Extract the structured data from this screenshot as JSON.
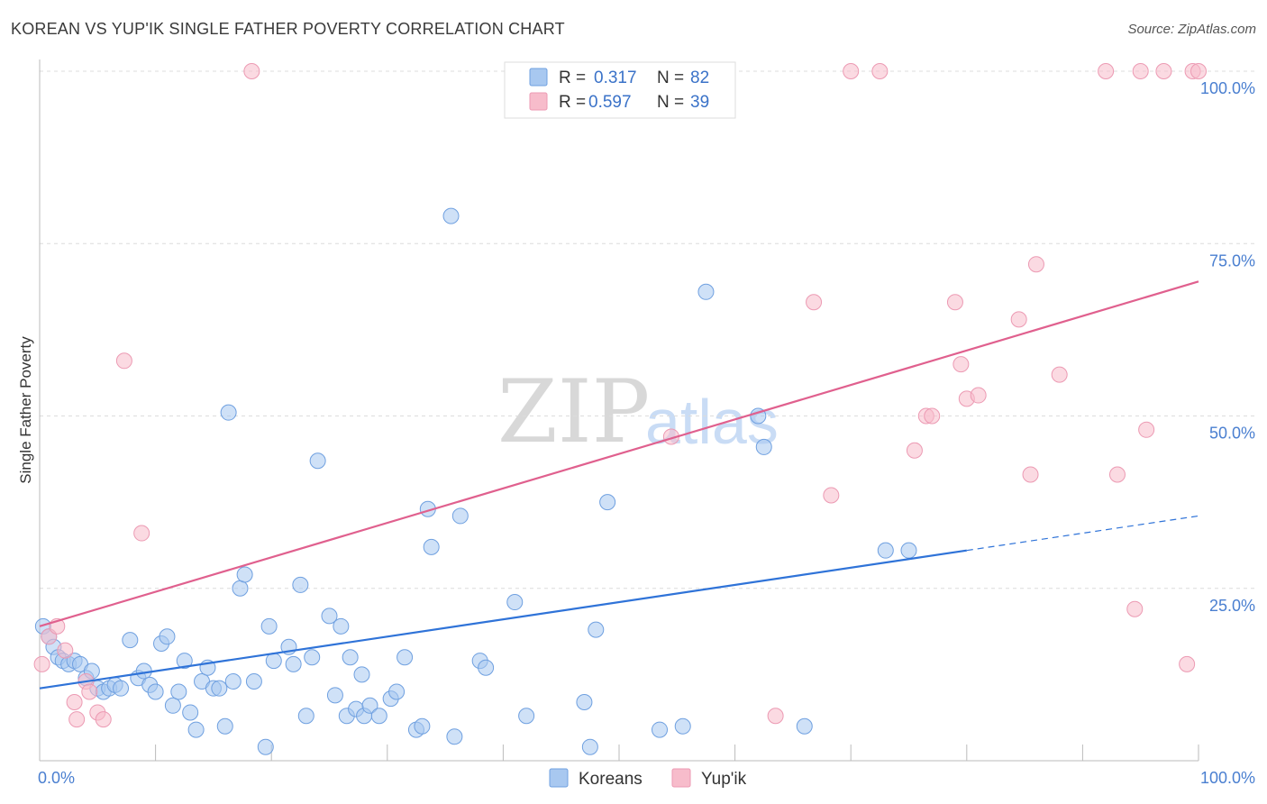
{
  "header": {
    "title": "KOREAN VS YUP'IK SINGLE FATHER POVERTY CORRELATION CHART",
    "source": "Source: ZipAtlas.com"
  },
  "watermark": {
    "zip": "ZIP",
    "atlas": "atlas"
  },
  "legend": {
    "r_label": "R =",
    "n_label": "N =",
    "rows": [
      {
        "r": "0.317",
        "n": "82",
        "color": "#a8c8f0"
      },
      {
        "r": "0.597",
        "n": "39",
        "color": "#f7bccb"
      }
    ]
  },
  "bottom_legend": {
    "items": [
      "Koreans",
      "Yup'ik"
    ]
  },
  "chart_data": {
    "type": "scatter",
    "title": "KOREAN VS YUP'IK SINGLE FATHER POVERTY CORRELATION CHART",
    "xlabel": "",
    "ylabel": "Single Father Poverty",
    "xlim": [
      0,
      100
    ],
    "ylim": [
      0,
      100
    ],
    "x_tick_labels": [
      "0.0%",
      "100.0%"
    ],
    "y_tick_labels": [
      "25.0%",
      "50.0%",
      "75.0%",
      "100.0%"
    ],
    "y_ticks": [
      25,
      50,
      75,
      100
    ],
    "grid": true,
    "legend_placement": "top-center",
    "series": [
      {
        "name": "Koreans",
        "color": "#6fa0e0",
        "fill": "#a8c8f0",
        "points": [
          [
            0.3,
            19.5
          ],
          [
            0.8,
            18
          ],
          [
            1.2,
            16.5
          ],
          [
            1.6,
            15
          ],
          [
            2.0,
            14.5
          ],
          [
            2.5,
            14
          ],
          [
            3.0,
            14.5
          ],
          [
            3.5,
            14
          ],
          [
            4.0,
            12
          ],
          [
            4.5,
            13
          ],
          [
            5.0,
            10.5
          ],
          [
            5.5,
            10
          ],
          [
            6.0,
            10.5
          ],
          [
            6.5,
            11
          ],
          [
            7.0,
            10.5
          ],
          [
            7.8,
            17.5
          ],
          [
            8.5,
            12
          ],
          [
            9.0,
            13
          ],
          [
            9.5,
            11
          ],
          [
            10.0,
            10
          ],
          [
            10.5,
            17
          ],
          [
            11.0,
            18
          ],
          [
            11.5,
            8
          ],
          [
            12.0,
            10
          ],
          [
            12.5,
            14.5
          ],
          [
            13.0,
            7
          ],
          [
            13.5,
            4.5
          ],
          [
            14.0,
            11.5
          ],
          [
            14.5,
            13.5
          ],
          [
            15.0,
            10.5
          ],
          [
            15.5,
            10.5
          ],
          [
            16.0,
            5
          ],
          [
            16.3,
            50.5
          ],
          [
            16.7,
            11.5
          ],
          [
            17.3,
            25
          ],
          [
            17.7,
            27
          ],
          [
            18.5,
            11.5
          ],
          [
            19.5,
            2
          ],
          [
            19.8,
            19.5
          ],
          [
            20.2,
            14.5
          ],
          [
            21.5,
            16.5
          ],
          [
            21.9,
            14
          ],
          [
            22.5,
            25.5
          ],
          [
            23.0,
            6.5
          ],
          [
            23.5,
            15
          ],
          [
            24.0,
            43.5
          ],
          [
            25.0,
            21
          ],
          [
            25.5,
            9.5
          ],
          [
            26.0,
            19.5
          ],
          [
            26.5,
            6.5
          ],
          [
            26.8,
            15
          ],
          [
            27.3,
            7.5
          ],
          [
            27.8,
            12.5
          ],
          [
            28.0,
            6.5
          ],
          [
            28.5,
            8
          ],
          [
            29.3,
            6.5
          ],
          [
            30.3,
            9
          ],
          [
            30.8,
            10
          ],
          [
            31.5,
            15
          ],
          [
            32.5,
            4.5
          ],
          [
            33.0,
            5
          ],
          [
            33.5,
            36.5
          ],
          [
            33.8,
            31
          ],
          [
            35.5,
            79
          ],
          [
            35.8,
            3.5
          ],
          [
            36.3,
            35.5
          ],
          [
            38.0,
            14.5
          ],
          [
            38.5,
            13.5
          ],
          [
            41.0,
            23
          ],
          [
            42.0,
            6.5
          ],
          [
            47.0,
            8.5
          ],
          [
            47.5,
            2
          ],
          [
            48.0,
            19
          ],
          [
            49.0,
            37.5
          ],
          [
            53.5,
            4.5
          ],
          [
            55.5,
            5
          ],
          [
            57.5,
            68
          ],
          [
            62.0,
            50
          ],
          [
            62.5,
            45.5
          ],
          [
            66.0,
            5
          ],
          [
            73.0,
            30.5
          ],
          [
            75.0,
            30.5
          ]
        ]
      },
      {
        "name": "Yup'ik",
        "color": "#ec9ab3",
        "fill": "#f7bccb",
        "points": [
          [
            0.2,
            14
          ],
          [
            0.8,
            18
          ],
          [
            1.5,
            19.5
          ],
          [
            2.2,
            16
          ],
          [
            3.0,
            8.5
          ],
          [
            3.2,
            6
          ],
          [
            4.0,
            11.5
          ],
          [
            4.3,
            10
          ],
          [
            5.0,
            7
          ],
          [
            5.5,
            6
          ],
          [
            7.3,
            58
          ],
          [
            8.8,
            33
          ],
          [
            18.3,
            100
          ],
          [
            54.5,
            47
          ],
          [
            63.5,
            6.5
          ],
          [
            66.8,
            66.5
          ],
          [
            68.3,
            38.5
          ],
          [
            70.0,
            100
          ],
          [
            72.5,
            100
          ],
          [
            75.5,
            45
          ],
          [
            76.5,
            50
          ],
          [
            77.0,
            50
          ],
          [
            79.0,
            66.5
          ],
          [
            79.5,
            57.5
          ],
          [
            80.0,
            52.5
          ],
          [
            81.0,
            53
          ],
          [
            84.5,
            64
          ],
          [
            85.5,
            41.5
          ],
          [
            86.0,
            72
          ],
          [
            88.0,
            56
          ],
          [
            92.0,
            100
          ],
          [
            93.0,
            41.5
          ],
          [
            94.5,
            22
          ],
          [
            95.0,
            100
          ],
          [
            95.5,
            48
          ],
          [
            97.0,
            100
          ],
          [
            99.0,
            14
          ],
          [
            99.5,
            100
          ],
          [
            100.0,
            100
          ]
        ]
      }
    ],
    "trendlines": [
      {
        "series": "Koreans",
        "from": [
          0,
          10.5
        ],
        "to": [
          80,
          30.5
        ],
        "dashed_to": [
          100,
          35.5
        ],
        "color": "#2f73d8"
      },
      {
        "series": "Yup'ik",
        "from": [
          0,
          19.5
        ],
        "to": [
          100,
          69.5
        ],
        "color": "#e0608e"
      }
    ]
  }
}
